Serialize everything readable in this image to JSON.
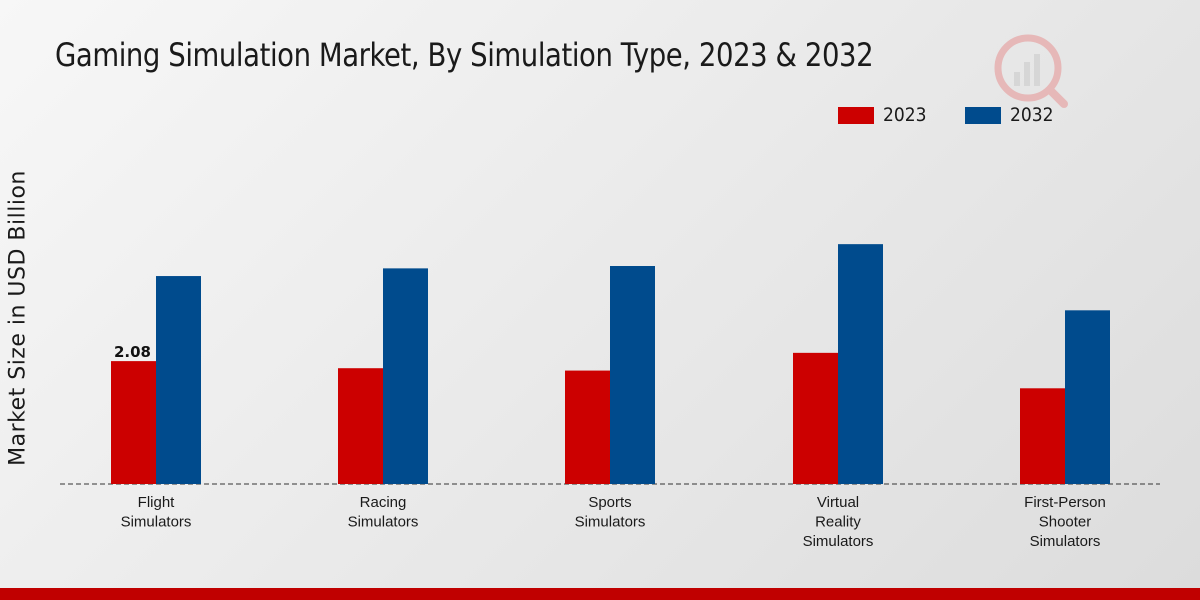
{
  "chart_data": {
    "type": "bar",
    "title": "Gaming Simulation Market, By Simulation Type, 2023 & 2032",
    "xlabel": "",
    "ylabel": "Market Size in USD Billion",
    "categories": [
      "Flight Simulators",
      "Racing Simulators",
      "Sports Simulators",
      "Virtual Reality Simulators",
      "First-Person Shooter Simulators"
    ],
    "category_lines": [
      [
        "Flight",
        "Simulators"
      ],
      [
        "Racing",
        "Simulators"
      ],
      [
        "Sports",
        "Simulators"
      ],
      [
        "Virtual",
        "Reality",
        "Simulators"
      ],
      [
        "First-Person",
        "Shooter",
        "Simulators"
      ]
    ],
    "series": [
      {
        "name": "2023",
        "color": "#cc0000",
        "values": [
          2.08,
          1.96,
          1.92,
          2.22,
          1.62
        ]
      },
      {
        "name": "2032",
        "color": "#004b8d",
        "values": [
          3.52,
          3.65,
          3.69,
          4.06,
          2.94
        ]
      }
    ],
    "data_labels": [
      {
        "series": 0,
        "index": 0,
        "text": "2.08"
      }
    ],
    "ylim": [
      0,
      6.5
    ],
    "grid": false,
    "legend_position": "top-right"
  }
}
